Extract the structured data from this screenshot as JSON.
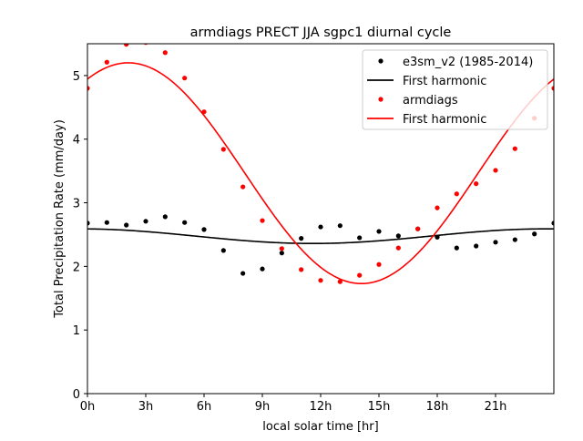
{
  "chart_data": {
    "type": "scatter",
    "title": "armdiags PRECT JJA sgpc1 diurnal cycle",
    "xlabel": "local solar time [hr]",
    "ylabel": "Total Precipitation Rate (mm/day)",
    "xlim": [
      0,
      24
    ],
    "ylim": [
      0,
      5.5
    ],
    "xticks": [
      0,
      3,
      6,
      9,
      12,
      15,
      18,
      21
    ],
    "xtick_labels": [
      "0h",
      "3h",
      "6h",
      "9h",
      "12h",
      "15h",
      "18h",
      "21h"
    ],
    "yticks": [
      0,
      1,
      2,
      3,
      4,
      5
    ],
    "ytick_labels": [
      "0",
      "1",
      "2",
      "3",
      "4",
      "5"
    ],
    "grid": false,
    "legend_placement": "top-right",
    "x": [
      0,
      1,
      2,
      3,
      4,
      5,
      6,
      7,
      8,
      9,
      10,
      11,
      12,
      13,
      14,
      15,
      16,
      17,
      18,
      19,
      20,
      21,
      22,
      23,
      24
    ],
    "series": [
      {
        "name": "e3sm_v2 (1985-2014)",
        "kind": "points",
        "color": "#000000",
        "values": [
          2.68,
          2.69,
          2.65,
          2.71,
          2.78,
          2.69,
          2.58,
          2.25,
          1.89,
          1.96,
          2.21,
          2.44,
          2.62,
          2.64,
          2.45,
          2.55,
          2.48,
          2.59,
          2.46,
          2.29,
          2.32,
          2.38,
          2.42,
          2.51,
          2.68
        ]
      },
      {
        "name": "First harmonic",
        "kind": "line",
        "color": "#000000",
        "mean": 2.475,
        "amplitude": 0.115,
        "peak_hour": 23.6
      },
      {
        "name": "armdiags",
        "kind": "points",
        "color": "#ff0000",
        "values": [
          4.8,
          5.21,
          5.49,
          5.52,
          5.36,
          4.96,
          4.43,
          3.84,
          3.25,
          2.72,
          2.28,
          1.95,
          1.78,
          1.76,
          1.86,
          2.03,
          2.29,
          2.59,
          2.92,
          3.14,
          3.3,
          3.51,
          3.85,
          4.33,
          4.8
        ]
      },
      {
        "name": "First harmonic",
        "kind": "line",
        "color": "#ff0000",
        "mean": 3.465,
        "amplitude": 1.735,
        "peak_hour": 2.1
      }
    ]
  }
}
